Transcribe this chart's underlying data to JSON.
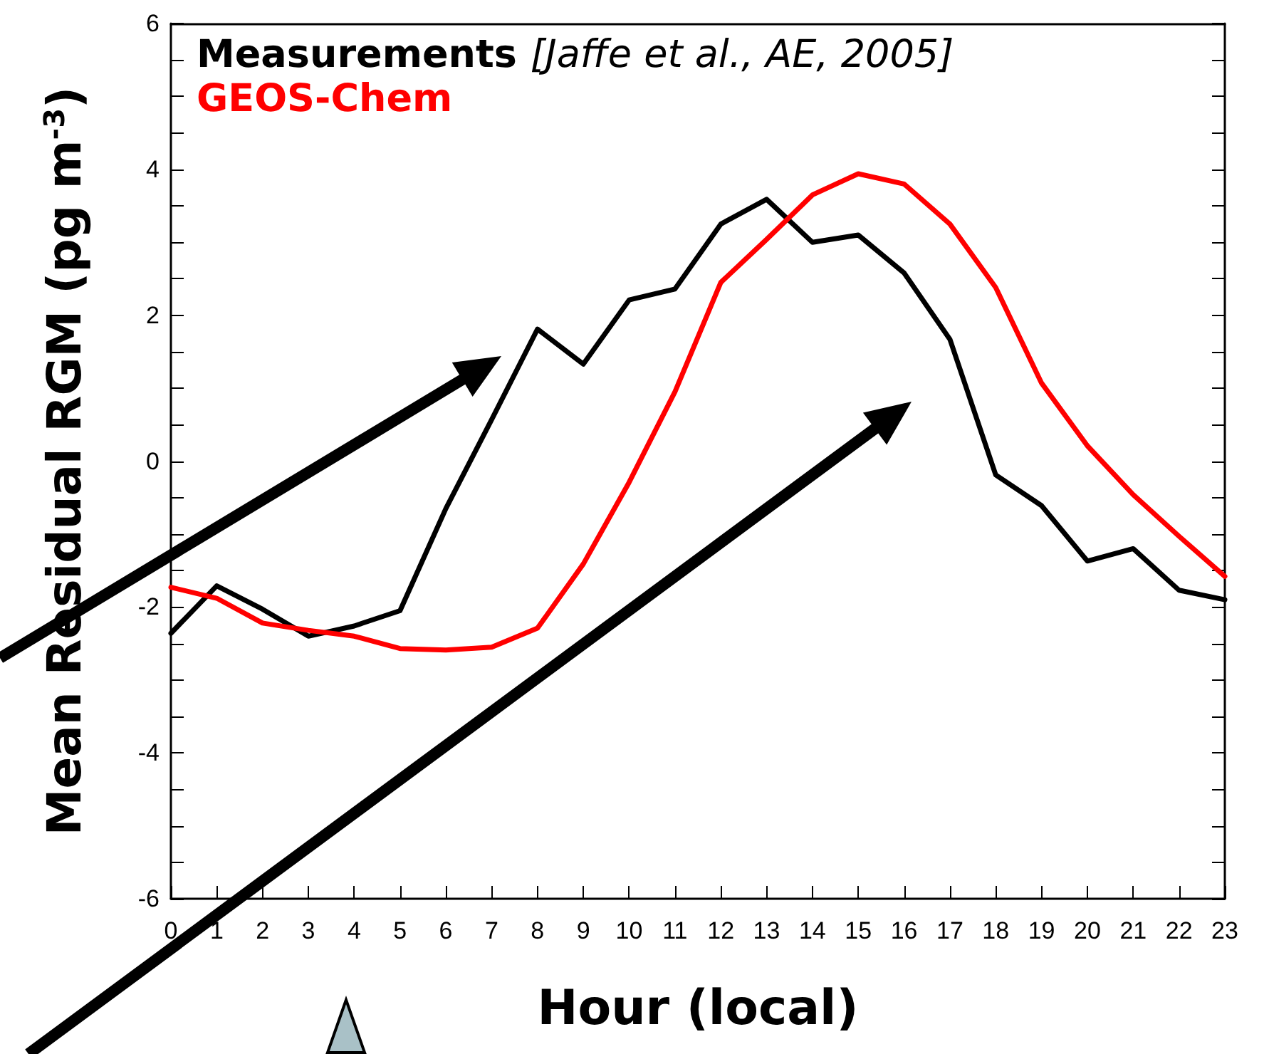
{
  "chart_data": {
    "type": "line",
    "xlabel": "Hour (local)",
    "ylabel": "Mean Residual RGM (pg m$^{-3}$)",
    "x": [
      0,
      1,
      2,
      3,
      4,
      5,
      6,
      7,
      8,
      9,
      10,
      11,
      12,
      13,
      14,
      15,
      16,
      17,
      18,
      19,
      20,
      21,
      22,
      23
    ],
    "series": [
      {
        "name": "Measurements [Jaffe et al., AE, 2005]",
        "color": "#000000",
        "values": [
          -2.36,
          -1.71,
          -2.03,
          -2.4,
          -2.26,
          -2.05,
          -0.65,
          0.57,
          1.81,
          1.33,
          2.21,
          2.36,
          3.25,
          3.59,
          3.0,
          3.1,
          2.58,
          1.67,
          -0.19,
          -0.61,
          -1.37,
          -1.2,
          -1.77,
          -1.9
        ]
      },
      {
        "name": "GEOS-Chem",
        "color": "#ff0000",
        "values": [
          -1.73,
          -1.88,
          -2.22,
          -2.32,
          -2.4,
          -2.57,
          -2.59,
          -2.55,
          -2.29,
          -1.41,
          -0.29,
          0.95,
          2.45,
          3.04,
          3.65,
          3.94,
          3.8,
          3.25,
          2.38,
          1.07,
          0.21,
          -0.46,
          -1.03,
          -1.58
        ]
      }
    ],
    "xlim": [
      0,
      23
    ],
    "xticks": [
      0,
      1,
      2,
      3,
      4,
      5,
      6,
      7,
      8,
      9,
      10,
      11,
      12,
      13,
      14,
      15,
      16,
      17,
      18,
      19,
      20,
      21,
      22,
      23
    ],
    "ylim": [
      -6,
      6
    ],
    "yticks": [
      -6,
      {
        "value": -5.5,
        "label": null
      },
      {
        "value": -5,
        "label": null
      },
      {
        "value": -4.5,
        "label": null
      },
      -4,
      {
        "value": -3.5,
        "label": null
      },
      {
        "value": -3,
        "label": null
      },
      {
        "value": -2.5,
        "label": null
      },
      -2,
      {
        "value": -1.5,
        "label": null
      },
      {
        "value": -1,
        "label": null
      },
      {
        "value": -0.5,
        "label": null
      },
      0,
      {
        "value": 0.5,
        "label": null
      },
      {
        "value": 1,
        "label": null
      },
      {
        "value": 1.5,
        "label": null
      },
      2,
      {
        "value": 2.5,
        "label": null
      },
      {
        "value": 3,
        "label": null
      },
      {
        "value": 3.5,
        "label": null
      },
      4,
      {
        "value": 4.5,
        "label": null
      },
      {
        "value": 5,
        "label": null
      },
      {
        "value": 5.5,
        "label": null
      },
      6
    ],
    "legend": "top left",
    "grid": false,
    "marker": "none",
    "line_style": "solid"
  }
}
